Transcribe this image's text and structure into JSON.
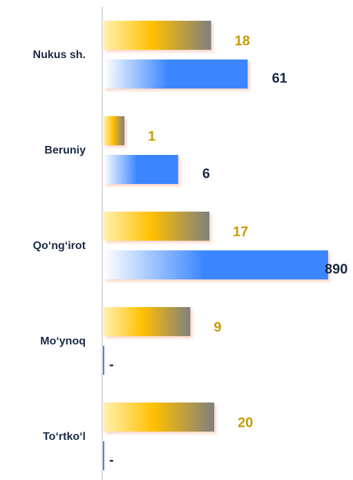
{
  "chart_data": {
    "type": "hbar",
    "log_scale": true,
    "xlim": [
      0.5,
      1000
    ],
    "categories": [
      "Nukus sh.",
      "Beruniy",
      "Qo‘ng‘irot",
      "Mo‘ynoq",
      "To‘rtko‘l"
    ],
    "series": [
      {
        "color": "#ffc000",
        "values": [
          18,
          1,
          17,
          9,
          20
        ],
        "value_labels": [
          "18",
          "1",
          "17",
          "9",
          "20"
        ]
      },
      {
        "color": "#3a86ff",
        "values": [
          61,
          6,
          890,
          null,
          null
        ],
        "value_labels": [
          "61",
          "6",
          "890",
          "-",
          "-"
        ]
      }
    ]
  }
}
